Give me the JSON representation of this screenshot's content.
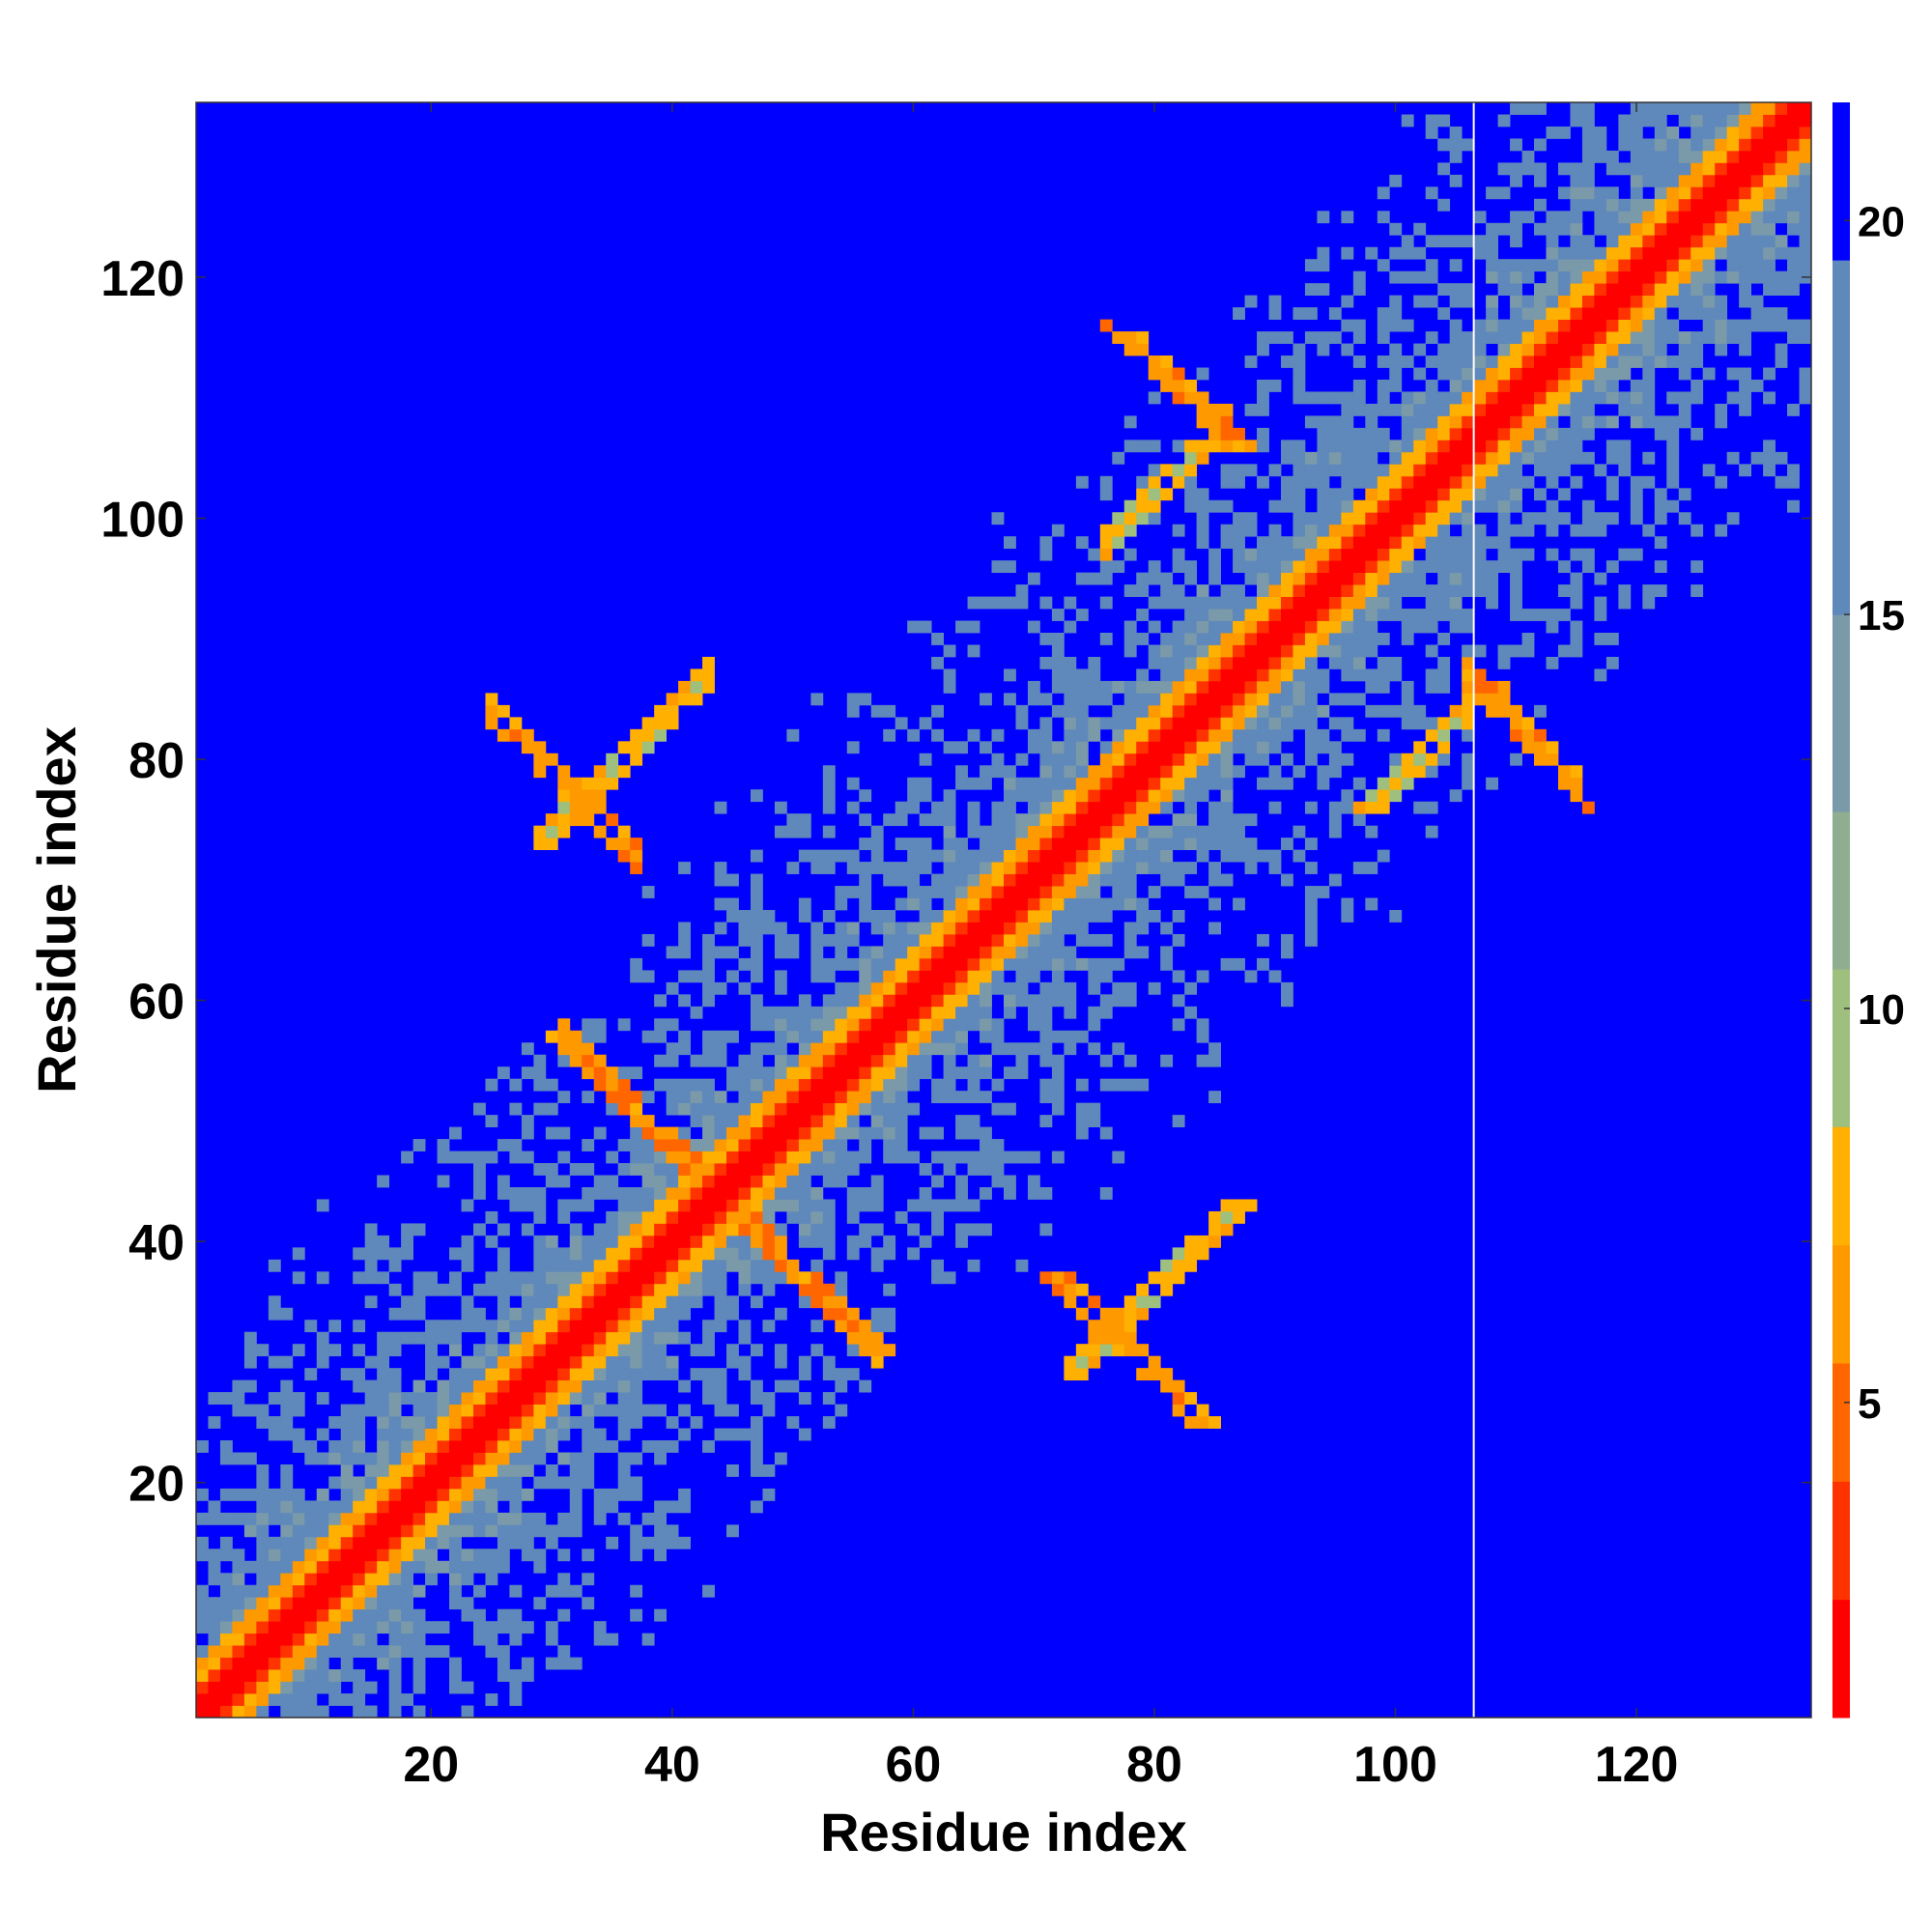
{
  "chart_data": {
    "type": "heatmap",
    "title": "",
    "xlabel": "Residue index",
    "ylabel": "Residue index",
    "n_residues": 134,
    "xlim": [
      1,
      134
    ],
    "ylim": [
      1,
      134
    ],
    "x_ticks": [
      20,
      40,
      60,
      80,
      100,
      120
    ],
    "y_ticks": [
      20,
      40,
      60,
      80,
      100,
      120
    ],
    "colorbar": {
      "ticks": [
        5,
        10,
        15,
        20
      ],
      "range": [
        1,
        21.5
      ],
      "colors": [
        "#ff0000",
        "#ff3300",
        "#ff6600",
        "#ff9900",
        "#ffb000",
        "#9fbf7f",
        "#8fae8f",
        "#7a9aaa",
        "#5f88bb",
        "#0000ff"
      ]
    },
    "diagonal_band_width": 3,
    "contact_features": [
      {
        "kind": "beta-antiparallel",
        "center": [
          44,
          44
        ],
        "extent": 13
      },
      {
        "kind": "beta-antiparallel",
        "center": [
          31,
          78
        ],
        "extent": 6
      },
      {
        "kind": "beta-antiparallel",
        "center": [
          111,
          82
        ],
        "extent": 5
      },
      {
        "kind": "helix-contact",
        "center": [
          36,
          80
        ],
        "extent": 7
      },
      {
        "kind": "helix-contact",
        "center": [
          81,
          103
        ],
        "extent": 5
      }
    ],
    "white_line_at": 107
  }
}
